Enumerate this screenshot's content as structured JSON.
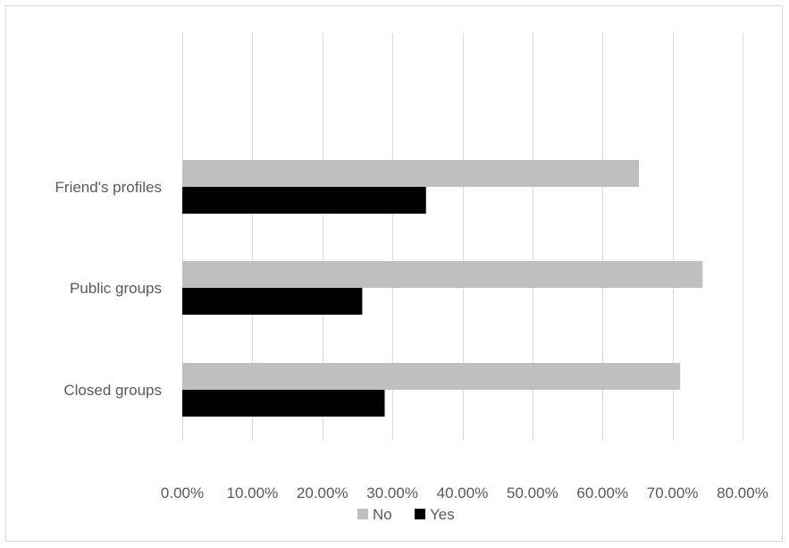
{
  "chart_data": {
    "type": "bar",
    "orientation": "horizontal",
    "categories": [
      "Friend's profiles",
      "Public groups",
      "Closed groups"
    ],
    "series": [
      {
        "name": "No",
        "color": "#bfbfbf",
        "values": [
          0.652,
          0.743,
          0.711
        ]
      },
      {
        "name": "Yes",
        "color": "#000000",
        "values": [
          0.348,
          0.257,
          0.289
        ]
      }
    ],
    "xlim": [
      0,
      0.8
    ],
    "x_ticks": [
      0,
      0.1,
      0.2,
      0.3,
      0.4,
      0.5,
      0.6,
      0.7,
      0.8
    ],
    "x_tick_labels": [
      "0.00%",
      "10.00%",
      "20.00%",
      "30.00%",
      "40.00%",
      "50.00%",
      "60.00%",
      "70.00%",
      "80.00%"
    ],
    "grid": "vertical",
    "legend_position": "bottom",
    "title": "",
    "xlabel": "",
    "ylabel": ""
  }
}
